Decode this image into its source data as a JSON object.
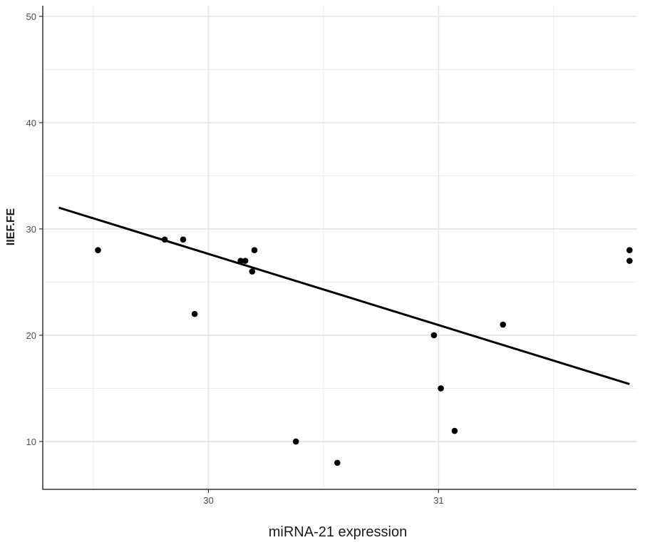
{
  "chart_data": {
    "type": "scatter",
    "title": "",
    "xlabel": "miRNA-21 expression",
    "ylabel": "IIEF.FE",
    "xlim": [
      29.28,
      31.86
    ],
    "ylim": [
      5.5,
      51
    ],
    "x_ticks": [
      30,
      31
    ],
    "x_minor_ticks": [
      29.5,
      30.5,
      31.5
    ],
    "y_ticks": [
      10,
      20,
      30,
      40,
      50
    ],
    "y_minor_ticks": [
      15,
      25,
      35,
      45
    ],
    "grid": true,
    "points": [
      {
        "x": 29.52,
        "y": 28
      },
      {
        "x": 29.81,
        "y": 29
      },
      {
        "x": 29.89,
        "y": 29
      },
      {
        "x": 29.94,
        "y": 22
      },
      {
        "x": 30.14,
        "y": 27
      },
      {
        "x": 30.16,
        "y": 27
      },
      {
        "x": 30.19,
        "y": 26
      },
      {
        "x": 30.2,
        "y": 28
      },
      {
        "x": 30.38,
        "y": 10
      },
      {
        "x": 30.56,
        "y": 8
      },
      {
        "x": 30.98,
        "y": 20
      },
      {
        "x": 31.01,
        "y": 15
      },
      {
        "x": 31.07,
        "y": 11
      },
      {
        "x": 31.28,
        "y": 21
      },
      {
        "x": 31.83,
        "y": 28
      },
      {
        "x": 31.83,
        "y": 27
      }
    ],
    "trend_line": {
      "x": [
        29.35,
        31.83
      ],
      "y": [
        32.0,
        15.4
      ]
    },
    "colors": {
      "points": "#000000",
      "line": "#000000",
      "grid": "#e6e6e6",
      "panel_border": "#333333"
    }
  }
}
